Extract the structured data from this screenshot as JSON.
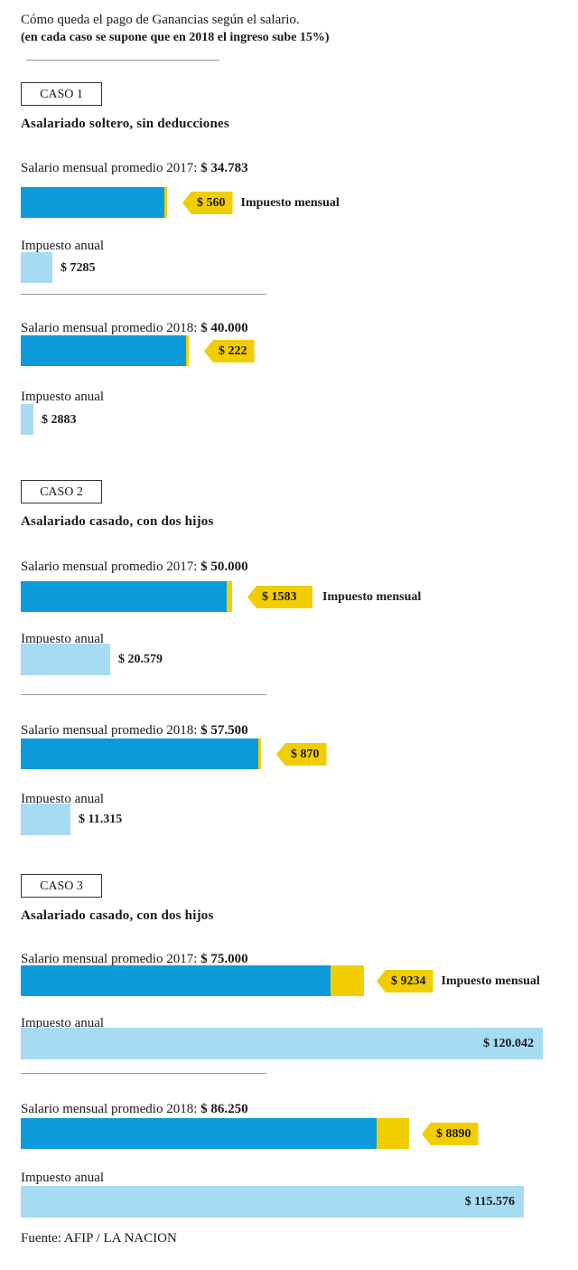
{
  "header": {
    "title": "Cómo queda el pago de Ganancias según el salario.",
    "subtitle": "(en cada caso se supone que en 2018 el ingreso sube 15%)"
  },
  "labels": {
    "impuesto_mensual": "Impuesto mensual",
    "impuesto_anual": "Impuesto anual",
    "salario_2017": "Salario mensual promedio 2017:",
    "salario_2018": "Salario mensual promedio 2018:"
  },
  "chart_data": {
    "type": "bar",
    "colors": {
      "salario": "#0b9bdb",
      "impuesto_mensual": "#f2cd00",
      "impuesto_anual": "#a6dcf2"
    },
    "cases": [
      {
        "name": "CASO 1",
        "title": "Asalariado soltero, sin deducciones",
        "rows": [
          {
            "year": 2017,
            "salario": 34783,
            "salario_label": "$ 34.783",
            "impuesto_mensual": 560,
            "impuesto_mensual_label": "$ 560",
            "impuesto_anual": 7285,
            "impuesto_anual_label": "$ 7285"
          },
          {
            "year": 2018,
            "salario": 40000,
            "salario_label": "$ 40.000",
            "impuesto_mensual": 222,
            "impuesto_mensual_label": "$ 222",
            "impuesto_anual": 2883,
            "impuesto_anual_label": "$ 2883"
          }
        ]
      },
      {
        "name": "CASO 2",
        "title": "Asalariado casado, con dos hijos",
        "rows": [
          {
            "year": 2017,
            "salario": 50000,
            "salario_label": "$ 50.000",
            "impuesto_mensual": 1583,
            "impuesto_mensual_label": "$ 1583",
            "impuesto_anual": 20579,
            "impuesto_anual_label": "$ 20.579"
          },
          {
            "year": 2018,
            "salario": 57500,
            "salario_label": "$ 57.500",
            "impuesto_mensual": 870,
            "impuesto_mensual_label": "$ 870",
            "impuesto_anual": 11315,
            "impuesto_anual_label": "$ 11.315"
          }
        ]
      },
      {
        "name": "CASO 3",
        "title": "Asalariado casado, con dos hijos",
        "rows": [
          {
            "year": 2017,
            "salario": 75000,
            "salario_label": "$ 75.000",
            "impuesto_mensual": 9234,
            "impuesto_mensual_label": "$ 9234",
            "impuesto_anual": 120042,
            "impuesto_anual_label": "$ 120.042"
          },
          {
            "year": 2018,
            "salario": 86250,
            "salario_label": "$ 86.250",
            "impuesto_mensual": 8890,
            "impuesto_mensual_label": "$ 8890",
            "impuesto_anual": 115576,
            "impuesto_anual_label": "$ 115.576"
          }
        ]
      }
    ]
  },
  "footer": {
    "source": "Fuente: AFIP / LA NACION"
  }
}
